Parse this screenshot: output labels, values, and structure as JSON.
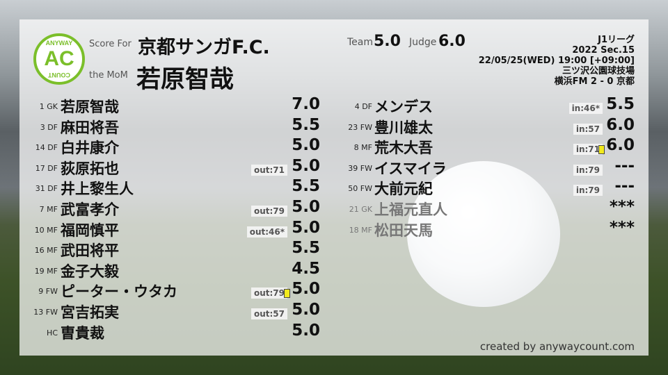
{
  "header": {
    "logo_top": "ANYWAY",
    "logo_main": "AC",
    "logo_bottom": "COUNT",
    "score_for_label": "Score For",
    "team_name": "京都サンガF.C.",
    "mom_label": "the MoM",
    "mom_name": "若原智哉",
    "team_label": "Team",
    "team_score": "5.0",
    "judge_label": "Judge",
    "judge_score": "6.0"
  },
  "match": {
    "league": "J1リーグ",
    "section": "2022 Sec.15",
    "datetime": "22/05/25(WED) 19:00 [+09:00]",
    "venue": "三ツ沢公園球技場",
    "result": "横浜FM 2 - 0 京都"
  },
  "starters": [
    {
      "pos": "1 GK",
      "name": "若原智哉",
      "score": "7.0",
      "tag": "",
      "card": false
    },
    {
      "pos": "3 DF",
      "name": "麻田将吾",
      "score": "5.5",
      "tag": "",
      "card": false
    },
    {
      "pos": "14 DF",
      "name": "白井康介",
      "score": "5.0",
      "tag": "",
      "card": false
    },
    {
      "pos": "17 DF",
      "name": "荻原拓也",
      "score": "5.0",
      "tag": "out:71",
      "card": false
    },
    {
      "pos": "31 DF",
      "name": "井上黎生人",
      "score": "5.5",
      "tag": "",
      "card": false
    },
    {
      "pos": "7 MF",
      "name": "武富孝介",
      "score": "5.0",
      "tag": "out:79",
      "card": false
    },
    {
      "pos": "10 MF",
      "name": "福岡慎平",
      "score": "5.0",
      "tag": "out:46*",
      "card": false
    },
    {
      "pos": "16 MF",
      "name": "武田将平",
      "score": "5.5",
      "tag": "",
      "card": false
    },
    {
      "pos": "19 MF",
      "name": "金子大毅",
      "score": "4.5",
      "tag": "",
      "card": false
    },
    {
      "pos": "9 FW",
      "name": "ピーター・ウタカ",
      "score": "5.0",
      "tag": "out:79",
      "card": true
    },
    {
      "pos": "13 FW",
      "name": "宮吉拓実",
      "score": "5.0",
      "tag": "out:57",
      "card": false
    },
    {
      "pos": "HC",
      "name": "曺貴裁",
      "score": "5.0",
      "tag": "",
      "card": false
    }
  ],
  "subs": [
    {
      "pos": "4 DF",
      "name": "メンデス",
      "score": "5.5",
      "tag": "in:46*",
      "card": false,
      "unused": false
    },
    {
      "pos": "23 FW",
      "name": "豊川雄太",
      "score": "6.0",
      "tag": "in:57",
      "card": false,
      "unused": false
    },
    {
      "pos": "8 MF",
      "name": "荒木大吾",
      "score": "6.0",
      "tag": "in:71",
      "card": true,
      "unused": false
    },
    {
      "pos": "39 FW",
      "name": "イスマイラ",
      "score": "---",
      "tag": "in:79",
      "card": false,
      "unused": false
    },
    {
      "pos": "50 FW",
      "name": "大前元紀",
      "score": "---",
      "tag": "in:79",
      "card": false,
      "unused": false
    },
    {
      "pos": "21 GK",
      "name": "上福元直人",
      "score": "***",
      "tag": "",
      "card": false,
      "unused": true
    },
    {
      "pos": "18 MF",
      "name": "松田天馬",
      "score": "***",
      "tag": "",
      "card": false,
      "unused": true
    }
  ],
  "footer": {
    "credit": "created by anywaycount.com"
  },
  "colors": {
    "logo_green": "#7bbf2a",
    "yellow_card": "#f2ea1c"
  }
}
